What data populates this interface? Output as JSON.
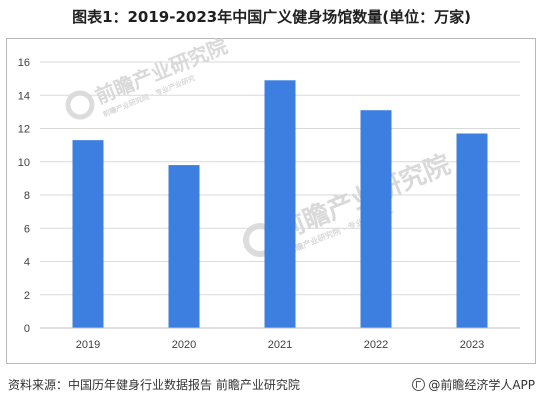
{
  "title": "图表1：2019-2023年中国广义健身场馆数量(单位：万家)",
  "footer": {
    "source": "资料来源：中国历年健身行业数据报告 前瞻产业研究院",
    "brand": "@前瞻经济学人APP"
  },
  "watermark": {
    "text": "前瞻产业研究院",
    "subtext": "前瞻产业研究院 · 专业产业研究"
  },
  "colors": {
    "bar": "#3d7fe0",
    "grid": "#d9d9d9",
    "axis": "#bfbfbf"
  },
  "chart_data": {
    "type": "bar",
    "title": "图表1：2019-2023年中国广义健身场馆数量(单位：万家)",
    "xlabel": "",
    "ylabel": "",
    "categories": [
      "2019",
      "2020",
      "2021",
      "2022",
      "2023"
    ],
    "values": [
      11.3,
      9.8,
      14.9,
      13.1,
      11.7
    ],
    "ylim": [
      0,
      16
    ],
    "yticks": [
      0,
      2,
      4,
      6,
      8,
      10,
      12,
      14,
      16
    ],
    "grid": true,
    "legend": "none"
  }
}
